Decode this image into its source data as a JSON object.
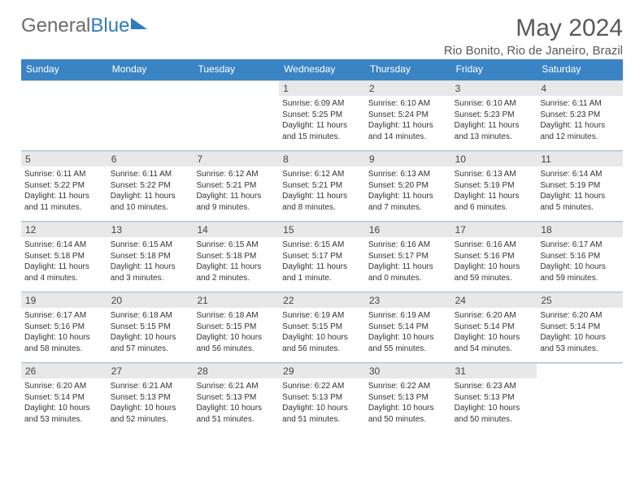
{
  "logo": {
    "textGray": "General",
    "textBlue": "Blue"
  },
  "header": {
    "title": "May 2024",
    "subtitle": "Rio Bonito, Rio de Janeiro, Brazil"
  },
  "colors": {
    "header_bg": "#3b84c4",
    "header_text": "#ffffff",
    "daynum_bg": "#e8e8e8",
    "body_text": "#333333",
    "title_text": "#595959"
  },
  "dayNames": [
    "Sunday",
    "Monday",
    "Tuesday",
    "Wednesday",
    "Thursday",
    "Friday",
    "Saturday"
  ],
  "weeks": [
    [
      {
        "day": "",
        "sunrise": "",
        "sunset": "",
        "daylight": ""
      },
      {
        "day": "",
        "sunrise": "",
        "sunset": "",
        "daylight": ""
      },
      {
        "day": "",
        "sunrise": "",
        "sunset": "",
        "daylight": ""
      },
      {
        "day": "1",
        "sunrise": "Sunrise: 6:09 AM",
        "sunset": "Sunset: 5:25 PM",
        "daylight": "Daylight: 11 hours and 15 minutes."
      },
      {
        "day": "2",
        "sunrise": "Sunrise: 6:10 AM",
        "sunset": "Sunset: 5:24 PM",
        "daylight": "Daylight: 11 hours and 14 minutes."
      },
      {
        "day": "3",
        "sunrise": "Sunrise: 6:10 AM",
        "sunset": "Sunset: 5:23 PM",
        "daylight": "Daylight: 11 hours and 13 minutes."
      },
      {
        "day": "4",
        "sunrise": "Sunrise: 6:11 AM",
        "sunset": "Sunset: 5:23 PM",
        "daylight": "Daylight: 11 hours and 12 minutes."
      }
    ],
    [
      {
        "day": "5",
        "sunrise": "Sunrise: 6:11 AM",
        "sunset": "Sunset: 5:22 PM",
        "daylight": "Daylight: 11 hours and 11 minutes."
      },
      {
        "day": "6",
        "sunrise": "Sunrise: 6:11 AM",
        "sunset": "Sunset: 5:22 PM",
        "daylight": "Daylight: 11 hours and 10 minutes."
      },
      {
        "day": "7",
        "sunrise": "Sunrise: 6:12 AM",
        "sunset": "Sunset: 5:21 PM",
        "daylight": "Daylight: 11 hours and 9 minutes."
      },
      {
        "day": "8",
        "sunrise": "Sunrise: 6:12 AM",
        "sunset": "Sunset: 5:21 PM",
        "daylight": "Daylight: 11 hours and 8 minutes."
      },
      {
        "day": "9",
        "sunrise": "Sunrise: 6:13 AM",
        "sunset": "Sunset: 5:20 PM",
        "daylight": "Daylight: 11 hours and 7 minutes."
      },
      {
        "day": "10",
        "sunrise": "Sunrise: 6:13 AM",
        "sunset": "Sunset: 5:19 PM",
        "daylight": "Daylight: 11 hours and 6 minutes."
      },
      {
        "day": "11",
        "sunrise": "Sunrise: 6:14 AM",
        "sunset": "Sunset: 5:19 PM",
        "daylight": "Daylight: 11 hours and 5 minutes."
      }
    ],
    [
      {
        "day": "12",
        "sunrise": "Sunrise: 6:14 AM",
        "sunset": "Sunset: 5:18 PM",
        "daylight": "Daylight: 11 hours and 4 minutes."
      },
      {
        "day": "13",
        "sunrise": "Sunrise: 6:15 AM",
        "sunset": "Sunset: 5:18 PM",
        "daylight": "Daylight: 11 hours and 3 minutes."
      },
      {
        "day": "14",
        "sunrise": "Sunrise: 6:15 AM",
        "sunset": "Sunset: 5:18 PM",
        "daylight": "Daylight: 11 hours and 2 minutes."
      },
      {
        "day": "15",
        "sunrise": "Sunrise: 6:15 AM",
        "sunset": "Sunset: 5:17 PM",
        "daylight": "Daylight: 11 hours and 1 minute."
      },
      {
        "day": "16",
        "sunrise": "Sunrise: 6:16 AM",
        "sunset": "Sunset: 5:17 PM",
        "daylight": "Daylight: 11 hours and 0 minutes."
      },
      {
        "day": "17",
        "sunrise": "Sunrise: 6:16 AM",
        "sunset": "Sunset: 5:16 PM",
        "daylight": "Daylight: 10 hours and 59 minutes."
      },
      {
        "day": "18",
        "sunrise": "Sunrise: 6:17 AM",
        "sunset": "Sunset: 5:16 PM",
        "daylight": "Daylight: 10 hours and 59 minutes."
      }
    ],
    [
      {
        "day": "19",
        "sunrise": "Sunrise: 6:17 AM",
        "sunset": "Sunset: 5:16 PM",
        "daylight": "Daylight: 10 hours and 58 minutes."
      },
      {
        "day": "20",
        "sunrise": "Sunrise: 6:18 AM",
        "sunset": "Sunset: 5:15 PM",
        "daylight": "Daylight: 10 hours and 57 minutes."
      },
      {
        "day": "21",
        "sunrise": "Sunrise: 6:18 AM",
        "sunset": "Sunset: 5:15 PM",
        "daylight": "Daylight: 10 hours and 56 minutes."
      },
      {
        "day": "22",
        "sunrise": "Sunrise: 6:19 AM",
        "sunset": "Sunset: 5:15 PM",
        "daylight": "Daylight: 10 hours and 56 minutes."
      },
      {
        "day": "23",
        "sunrise": "Sunrise: 6:19 AM",
        "sunset": "Sunset: 5:14 PM",
        "daylight": "Daylight: 10 hours and 55 minutes."
      },
      {
        "day": "24",
        "sunrise": "Sunrise: 6:20 AM",
        "sunset": "Sunset: 5:14 PM",
        "daylight": "Daylight: 10 hours and 54 minutes."
      },
      {
        "day": "25",
        "sunrise": "Sunrise: 6:20 AM",
        "sunset": "Sunset: 5:14 PM",
        "daylight": "Daylight: 10 hours and 53 minutes."
      }
    ],
    [
      {
        "day": "26",
        "sunrise": "Sunrise: 6:20 AM",
        "sunset": "Sunset: 5:14 PM",
        "daylight": "Daylight: 10 hours and 53 minutes."
      },
      {
        "day": "27",
        "sunrise": "Sunrise: 6:21 AM",
        "sunset": "Sunset: 5:13 PM",
        "daylight": "Daylight: 10 hours and 52 minutes."
      },
      {
        "day": "28",
        "sunrise": "Sunrise: 6:21 AM",
        "sunset": "Sunset: 5:13 PM",
        "daylight": "Daylight: 10 hours and 51 minutes."
      },
      {
        "day": "29",
        "sunrise": "Sunrise: 6:22 AM",
        "sunset": "Sunset: 5:13 PM",
        "daylight": "Daylight: 10 hours and 51 minutes."
      },
      {
        "day": "30",
        "sunrise": "Sunrise: 6:22 AM",
        "sunset": "Sunset: 5:13 PM",
        "daylight": "Daylight: 10 hours and 50 minutes."
      },
      {
        "day": "31",
        "sunrise": "Sunrise: 6:23 AM",
        "sunset": "Sunset: 5:13 PM",
        "daylight": "Daylight: 10 hours and 50 minutes."
      },
      {
        "day": "",
        "sunrise": "",
        "sunset": "",
        "daylight": ""
      }
    ]
  ]
}
